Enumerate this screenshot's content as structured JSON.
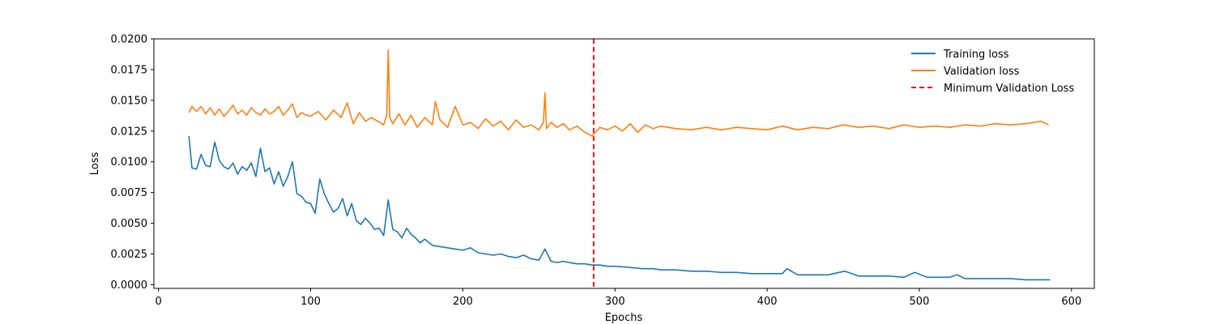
{
  "chart_data": {
    "type": "line",
    "xlabel": "Epochs",
    "ylabel": "Loss",
    "xlim": [
      -3,
      615
    ],
    "ylim": [
      -0.0003,
      0.02
    ],
    "x_ticks": [
      0,
      100,
      200,
      300,
      400,
      500,
      600
    ],
    "y_ticks": [
      0.0,
      0.0025,
      0.005,
      0.0075,
      0.01,
      0.0125,
      0.015,
      0.0175,
      0.02
    ],
    "y_tick_labels": [
      "0.0000",
      "0.0025",
      "0.0050",
      "0.0075",
      "0.0100",
      "0.0125",
      "0.0150",
      "0.0175",
      "0.0200"
    ],
    "grid": false,
    "legend_position": "top-right",
    "series": [
      {
        "name": "Training loss",
        "color": "#1f77b4",
        "x": [
          20,
          22,
          25,
          28,
          31,
          34,
          37,
          40,
          43,
          46,
          49,
          52,
          55,
          58,
          61,
          64,
          67,
          70,
          73,
          76,
          79,
          82,
          85,
          88,
          91,
          94,
          97,
          100,
          103,
          106,
          109,
          112,
          115,
          118,
          121,
          124,
          127,
          130,
          133,
          136,
          139,
          142,
          145,
          148,
          151,
          154,
          157,
          160,
          163,
          166,
          169,
          172,
          175,
          180,
          185,
          190,
          195,
          200,
          205,
          210,
          215,
          220,
          225,
          230,
          235,
          240,
          245,
          250,
          254,
          258,
          262,
          266,
          270,
          275,
          280,
          285,
          290,
          295,
          300,
          310,
          318,
          325,
          330,
          340,
          350,
          360,
          370,
          380,
          390,
          400,
          410,
          413,
          420,
          430,
          440,
          451,
          460,
          470,
          480,
          490,
          497,
          505,
          510,
          520,
          525,
          530,
          540,
          550,
          560,
          570,
          580,
          586
        ],
        "y": [
          0.0121,
          0.0095,
          0.0094,
          0.0106,
          0.0097,
          0.0096,
          0.0116,
          0.0101,
          0.0096,
          0.0094,
          0.0099,
          0.009,
          0.0096,
          0.0093,
          0.0099,
          0.0088,
          0.0111,
          0.0092,
          0.0095,
          0.0082,
          0.0092,
          0.008,
          0.0088,
          0.01,
          0.0074,
          0.0072,
          0.0067,
          0.0066,
          0.0058,
          0.0086,
          0.0074,
          0.0066,
          0.0059,
          0.0062,
          0.007,
          0.0056,
          0.0066,
          0.0052,
          0.0049,
          0.0054,
          0.005,
          0.0045,
          0.0046,
          0.004,
          0.0069,
          0.0045,
          0.0043,
          0.0038,
          0.0046,
          0.0041,
          0.0038,
          0.0034,
          0.0037,
          0.0032,
          0.0031,
          0.003,
          0.0029,
          0.0028,
          0.003,
          0.0026,
          0.0025,
          0.0024,
          0.0025,
          0.0023,
          0.0022,
          0.0024,
          0.0021,
          0.002,
          0.0029,
          0.0019,
          0.0018,
          0.0019,
          0.0018,
          0.0017,
          0.0017,
          0.0016,
          0.0016,
          0.0015,
          0.0015,
          0.0014,
          0.0013,
          0.0013,
          0.0012,
          0.0012,
          0.0011,
          0.0011,
          0.001,
          0.001,
          0.0009,
          0.0009,
          0.0009,
          0.0013,
          0.0008,
          0.0008,
          0.0008,
          0.0011,
          0.0007,
          0.0007,
          0.0007,
          0.0006,
          0.001,
          0.0006,
          0.0006,
          0.0006,
          0.0008,
          0.0005,
          0.0005,
          0.0005,
          0.0005,
          0.0004,
          0.0004,
          0.0004
        ]
      },
      {
        "name": "Validation loss",
        "color": "#ff7f0e",
        "x": [
          20,
          22,
          25,
          28,
          31,
          34,
          37,
          40,
          43,
          46,
          49,
          52,
          55,
          58,
          61,
          64,
          67,
          70,
          73,
          76,
          79,
          82,
          85,
          88,
          91,
          94,
          97,
          100,
          105,
          110,
          115,
          120,
          124,
          128,
          132,
          136,
          140,
          144,
          148,
          150,
          151,
          152,
          154,
          158,
          162,
          166,
          170,
          175,
          180,
          182,
          185,
          190,
          195,
          200,
          205,
          210,
          215,
          220,
          225,
          230,
          235,
          240,
          245,
          250,
          253,
          254,
          255,
          258,
          262,
          266,
          270,
          275,
          280,
          285,
          290,
          295,
          300,
          305,
          310,
          315,
          320,
          325,
          330,
          340,
          350,
          360,
          370,
          380,
          390,
          400,
          410,
          420,
          430,
          440,
          450,
          460,
          470,
          480,
          490,
          500,
          510,
          520,
          530,
          540,
          550,
          560,
          570,
          580,
          585
        ],
        "y": [
          0.014,
          0.0145,
          0.0141,
          0.0145,
          0.0139,
          0.0144,
          0.0138,
          0.0143,
          0.0137,
          0.0141,
          0.0146,
          0.0139,
          0.0142,
          0.0138,
          0.0144,
          0.014,
          0.0138,
          0.0143,
          0.0139,
          0.0141,
          0.0145,
          0.0138,
          0.0142,
          0.0147,
          0.0136,
          0.014,
          0.0138,
          0.0137,
          0.0141,
          0.0134,
          0.0142,
          0.0136,
          0.0148,
          0.0131,
          0.014,
          0.0133,
          0.0136,
          0.0133,
          0.013,
          0.0138,
          0.0191,
          0.0136,
          0.0131,
          0.0139,
          0.013,
          0.0138,
          0.0128,
          0.0136,
          0.013,
          0.0149,
          0.0134,
          0.0128,
          0.0145,
          0.013,
          0.0132,
          0.0127,
          0.0135,
          0.0129,
          0.0133,
          0.0126,
          0.0134,
          0.0128,
          0.013,
          0.0126,
          0.0132,
          0.0156,
          0.0127,
          0.0132,
          0.0128,
          0.0131,
          0.0126,
          0.0129,
          0.0124,
          0.0121,
          0.0128,
          0.0126,
          0.0129,
          0.0125,
          0.0131,
          0.0124,
          0.013,
          0.0127,
          0.0129,
          0.0127,
          0.0126,
          0.0128,
          0.0126,
          0.0128,
          0.0127,
          0.0126,
          0.0129,
          0.0126,
          0.0128,
          0.0127,
          0.013,
          0.0128,
          0.0129,
          0.0127,
          0.013,
          0.0128,
          0.0129,
          0.0128,
          0.013,
          0.0129,
          0.0131,
          0.013,
          0.0131,
          0.0133,
          0.013
        ]
      }
    ],
    "vline": {
      "name": "Minimum Validation Loss",
      "x": 286,
      "color": "#e41a1c",
      "style": "dashed"
    }
  }
}
